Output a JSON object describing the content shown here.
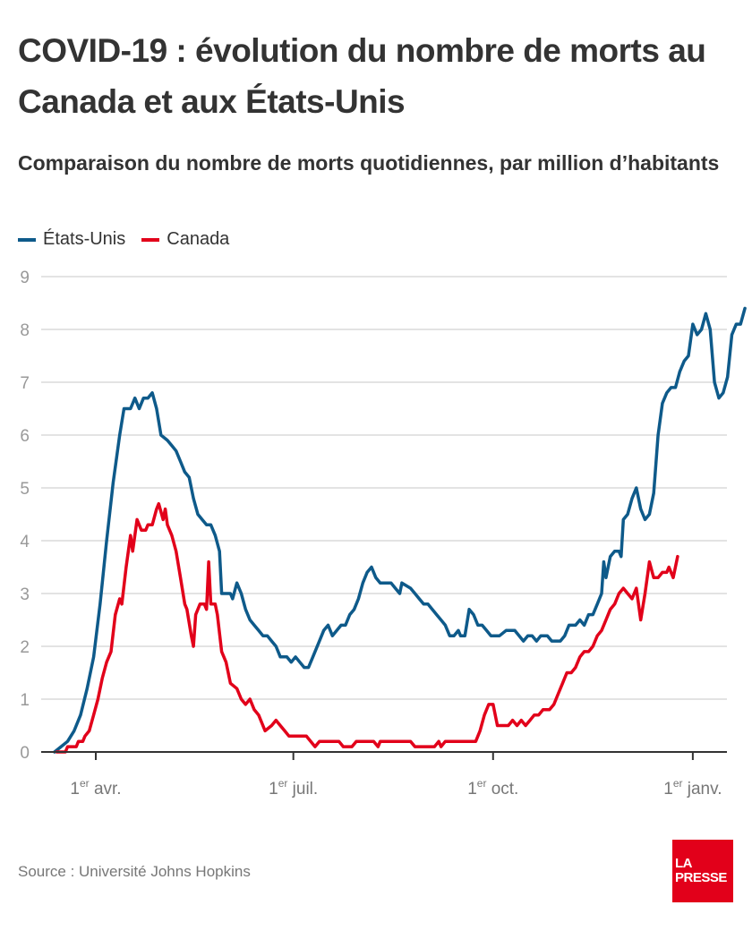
{
  "header": {
    "title": "COVID-19 : évolution du nombre de morts au Canada et aux États-Unis",
    "subtitle": "Comparaison du nombre de morts quotidiennes, par million d’habitants"
  },
  "footer": {
    "source": "Source : Université Johns Hopkins",
    "logo_line1": "LA",
    "logo_line2": "PRESSE"
  },
  "chart_data": {
    "type": "line",
    "title": "COVID-19 : évolution du nombre de morts au Canada et aux États-Unis",
    "subtitle": "Comparaison du nombre de morts quotidiennes, par million d’habitants",
    "xlabel": "",
    "ylabel": "",
    "ylim": [
      0,
      9
    ],
    "yticks": [
      "0",
      "1",
      "2",
      "3",
      "4",
      "5",
      "6",
      "7",
      "8",
      "9"
    ],
    "xticks": [
      {
        "label_num": "1",
        "label_sup": "er",
        "label_text": " avr.",
        "day": 0
      },
      {
        "label_num": "1",
        "label_sup": "er",
        "label_text": " juil.",
        "day": 91
      },
      {
        "label_num": "1",
        "label_sup": "er",
        "label_text": " oct.",
        "day": 183
      },
      {
        "label_num": "1",
        "label_sup": "er",
        "label_text": " janv.",
        "day": 275
      }
    ],
    "x_unit": "days since 1 April 2020",
    "xlim": [
      -25,
      290
    ],
    "grid": true,
    "legend_position": "top-left",
    "series": [
      {
        "name": "États-Unis",
        "color": "#0e5a8a",
        "points": [
          [
            -19,
            0
          ],
          [
            -16,
            0.1
          ],
          [
            -13,
            0.2
          ],
          [
            -10,
            0.4
          ],
          [
            -7,
            0.7
          ],
          [
            -4,
            1.2
          ],
          [
            -1,
            1.8
          ],
          [
            2,
            2.8
          ],
          [
            5,
            4.0
          ],
          [
            8,
            5.1
          ],
          [
            11,
            6.0
          ],
          [
            13,
            6.5
          ],
          [
            16,
            6.5
          ],
          [
            18,
            6.7
          ],
          [
            20,
            6.5
          ],
          [
            22,
            6.7
          ],
          [
            24,
            6.7
          ],
          [
            26,
            6.8
          ],
          [
            28,
            6.5
          ],
          [
            30,
            6.0
          ],
          [
            33,
            5.9
          ],
          [
            35,
            5.8
          ],
          [
            37,
            5.7
          ],
          [
            39,
            5.5
          ],
          [
            41,
            5.3
          ],
          [
            43,
            5.2
          ],
          [
            45,
            4.8
          ],
          [
            47,
            4.5
          ],
          [
            49,
            4.4
          ],
          [
            51,
            4.3
          ],
          [
            53,
            4.3
          ],
          [
            55,
            4.1
          ],
          [
            57,
            3.8
          ],
          [
            58,
            3.0
          ],
          [
            62,
            3.0
          ],
          [
            63,
            2.9
          ],
          [
            65,
            3.2
          ],
          [
            67,
            3.0
          ],
          [
            69,
            2.7
          ],
          [
            71,
            2.5
          ],
          [
            73,
            2.4
          ],
          [
            75,
            2.3
          ],
          [
            77,
            2.2
          ],
          [
            79,
            2.2
          ],
          [
            81,
            2.1
          ],
          [
            83,
            2.0
          ],
          [
            85,
            1.8
          ],
          [
            88,
            1.8
          ],
          [
            90,
            1.7
          ],
          [
            92,
            1.8
          ],
          [
            94,
            1.7
          ],
          [
            96,
            1.6
          ],
          [
            98,
            1.6
          ],
          [
            100,
            1.8
          ],
          [
            103,
            2.1
          ],
          [
            105,
            2.3
          ],
          [
            107,
            2.4
          ],
          [
            109,
            2.2
          ],
          [
            111,
            2.3
          ],
          [
            113,
            2.4
          ],
          [
            115,
            2.4
          ],
          [
            117,
            2.6
          ],
          [
            119,
            2.7
          ],
          [
            121,
            2.9
          ],
          [
            123,
            3.2
          ],
          [
            125,
            3.4
          ],
          [
            127,
            3.5
          ],
          [
            129,
            3.3
          ],
          [
            131,
            3.2
          ],
          [
            136,
            3.2
          ],
          [
            138,
            3.1
          ],
          [
            140,
            3.0
          ],
          [
            141,
            3.2
          ],
          [
            145,
            3.1
          ],
          [
            147,
            3.0
          ],
          [
            149,
            2.9
          ],
          [
            151,
            2.8
          ],
          [
            153,
            2.8
          ],
          [
            155,
            2.7
          ],
          [
            157,
            2.6
          ],
          [
            159,
            2.5
          ],
          [
            161,
            2.4
          ],
          [
            163,
            2.2
          ],
          [
            165,
            2.2
          ],
          [
            167,
            2.3
          ],
          [
            168,
            2.2
          ],
          [
            170,
            2.2
          ],
          [
            172,
            2.7
          ],
          [
            174,
            2.6
          ],
          [
            176,
            2.4
          ],
          [
            178,
            2.4
          ],
          [
            180,
            2.3
          ],
          [
            182,
            2.2
          ],
          [
            186,
            2.2
          ],
          [
            189,
            2.3
          ],
          [
            193,
            2.3
          ],
          [
            195,
            2.2
          ],
          [
            197,
            2.1
          ],
          [
            199,
            2.2
          ],
          [
            201,
            2.2
          ],
          [
            203,
            2.1
          ],
          [
            205,
            2.2
          ],
          [
            208,
            2.2
          ],
          [
            210,
            2.1
          ],
          [
            214,
            2.1
          ],
          [
            216,
            2.2
          ],
          [
            218,
            2.4
          ],
          [
            221,
            2.4
          ],
          [
            223,
            2.5
          ],
          [
            225,
            2.4
          ],
          [
            227,
            2.6
          ],
          [
            229,
            2.6
          ],
          [
            231,
            2.8
          ],
          [
            233,
            3.0
          ],
          [
            234,
            3.6
          ],
          [
            235,
            3.3
          ],
          [
            237,
            3.7
          ],
          [
            239,
            3.8
          ],
          [
            241,
            3.8
          ],
          [
            242,
            3.7
          ],
          [
            243,
            4.4
          ],
          [
            245,
            4.5
          ],
          [
            247,
            4.8
          ],
          [
            249,
            5.0
          ],
          [
            251,
            4.6
          ],
          [
            253,
            4.4
          ],
          [
            255,
            4.5
          ],
          [
            257,
            4.9
          ],
          [
            259,
            6.0
          ],
          [
            261,
            6.6
          ],
          [
            263,
            6.8
          ],
          [
            265,
            6.9
          ],
          [
            267,
            6.9
          ],
          [
            269,
            7.2
          ],
          [
            271,
            7.4
          ],
          [
            273,
            7.5
          ],
          [
            275,
            8.1
          ],
          [
            277,
            7.9
          ],
          [
            279,
            8.0
          ],
          [
            281,
            8.3
          ],
          [
            283,
            8.0
          ],
          [
            285,
            7.0
          ],
          [
            287,
            6.7
          ],
          [
            289,
            6.8
          ],
          [
            291,
            7.1
          ],
          [
            293,
            7.9
          ],
          [
            295,
            8.1
          ],
          [
            297,
            8.1
          ],
          [
            299,
            8.4
          ]
        ]
      },
      {
        "name": "Canada",
        "color": "#e2001a",
        "points": [
          [
            -18,
            0
          ],
          [
            -14,
            0
          ],
          [
            -13,
            0.1
          ],
          [
            -9,
            0.1
          ],
          [
            -8,
            0.2
          ],
          [
            -6,
            0.2
          ],
          [
            -5,
            0.3
          ],
          [
            -3,
            0.4
          ],
          [
            -1,
            0.7
          ],
          [
            1,
            1.0
          ],
          [
            3,
            1.4
          ],
          [
            5,
            1.7
          ],
          [
            7,
            1.9
          ],
          [
            9,
            2.6
          ],
          [
            11,
            2.9
          ],
          [
            12,
            2.8
          ],
          [
            14,
            3.5
          ],
          [
            16,
            4.1
          ],
          [
            17,
            3.8
          ],
          [
            19,
            4.4
          ],
          [
            21,
            4.2
          ],
          [
            23,
            4.2
          ],
          [
            24,
            4.3
          ],
          [
            26,
            4.3
          ],
          [
            28,
            4.6
          ],
          [
            29,
            4.7
          ],
          [
            31,
            4.4
          ],
          [
            32,
            4.6
          ],
          [
            33,
            4.3
          ],
          [
            35,
            4.1
          ],
          [
            37,
            3.8
          ],
          [
            39,
            3.3
          ],
          [
            41,
            2.8
          ],
          [
            42,
            2.7
          ],
          [
            44,
            2.2
          ],
          [
            45,
            2.0
          ],
          [
            46,
            2.6
          ],
          [
            48,
            2.8
          ],
          [
            50,
            2.8
          ],
          [
            51,
            2.7
          ],
          [
            52,
            3.6
          ],
          [
            53,
            2.8
          ],
          [
            55,
            2.8
          ],
          [
            56,
            2.6
          ],
          [
            58,
            1.9
          ],
          [
            60,
            1.7
          ],
          [
            62,
            1.3
          ],
          [
            65,
            1.2
          ],
          [
            67,
            1.0
          ],
          [
            69,
            0.9
          ],
          [
            71,
            1.0
          ],
          [
            73,
            0.8
          ],
          [
            75,
            0.7
          ],
          [
            77,
            0.5
          ],
          [
            78,
            0.4
          ],
          [
            81,
            0.5
          ],
          [
            83,
            0.6
          ],
          [
            85,
            0.5
          ],
          [
            87,
            0.4
          ],
          [
            89,
            0.3
          ],
          [
            97,
            0.3
          ],
          [
            99,
            0.2
          ],
          [
            101,
            0.1
          ],
          [
            103,
            0.2
          ],
          [
            112,
            0.2
          ],
          [
            114,
            0.1
          ],
          [
            118,
            0.1
          ],
          [
            120,
            0.2
          ],
          [
            128,
            0.2
          ],
          [
            130,
            0.1
          ],
          [
            131,
            0.2
          ],
          [
            145,
            0.2
          ],
          [
            147,
            0.1
          ],
          [
            156,
            0.1
          ],
          [
            158,
            0.2
          ],
          [
            159,
            0.1
          ],
          [
            161,
            0.2
          ],
          [
            175,
            0.2
          ],
          [
            177,
            0.4
          ],
          [
            179,
            0.7
          ],
          [
            181,
            0.9
          ],
          [
            183,
            0.9
          ],
          [
            185,
            0.5
          ],
          [
            190,
            0.5
          ],
          [
            192,
            0.6
          ],
          [
            194,
            0.5
          ],
          [
            196,
            0.6
          ],
          [
            198,
            0.5
          ],
          [
            200,
            0.6
          ],
          [
            202,
            0.7
          ],
          [
            204,
            0.7
          ],
          [
            206,
            0.8
          ],
          [
            209,
            0.8
          ],
          [
            211,
            0.9
          ],
          [
            213,
            1.1
          ],
          [
            215,
            1.3
          ],
          [
            217,
            1.5
          ],
          [
            219,
            1.5
          ],
          [
            221,
            1.6
          ],
          [
            223,
            1.8
          ],
          [
            225,
            1.9
          ],
          [
            227,
            1.9
          ],
          [
            229,
            2.0
          ],
          [
            231,
            2.2
          ],
          [
            233,
            2.3
          ],
          [
            235,
            2.5
          ],
          [
            237,
            2.7
          ],
          [
            239,
            2.8
          ],
          [
            241,
            3.0
          ],
          [
            243,
            3.1
          ],
          [
            245,
            3.0
          ],
          [
            247,
            2.9
          ],
          [
            249,
            3.1
          ],
          [
            251,
            2.5
          ],
          [
            253,
            3.0
          ],
          [
            255,
            3.6
          ],
          [
            257,
            3.3
          ],
          [
            259,
            3.3
          ],
          [
            261,
            3.4
          ],
          [
            263,
            3.4
          ],
          [
            264,
            3.5
          ],
          [
            266,
            3.3
          ],
          [
            268,
            3.7
          ]
        ]
      }
    ]
  }
}
